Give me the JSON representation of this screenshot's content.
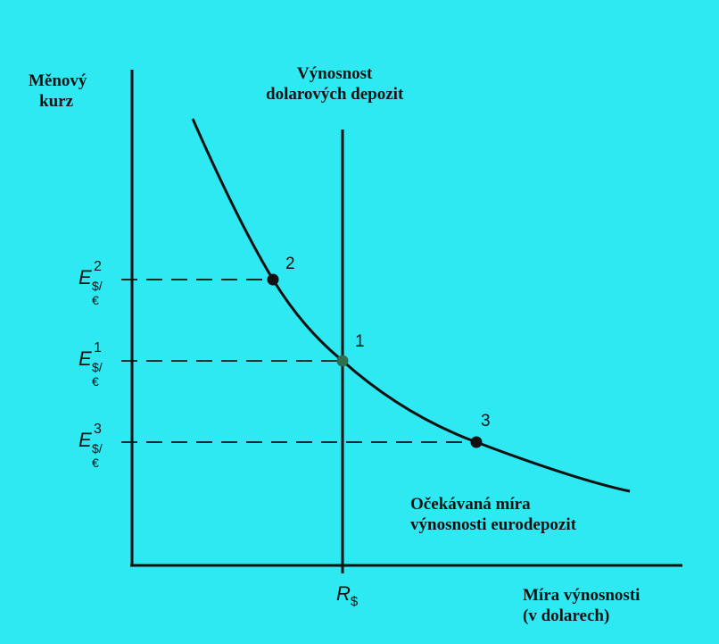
{
  "y_axis": {
    "label_line1": "Měnový",
    "label_line2": "kurz"
  },
  "x_axis": {
    "label_line1": "Míra výnosnosti",
    "label_line2": "(v dolarech)",
    "tick_label_main": "R",
    "tick_label_sub": "$"
  },
  "vertical_line": {
    "label_line1": "Výnosnost",
    "label_line2": "dolarových depozit"
  },
  "curve": {
    "label_line1": "Očekávaná míra",
    "label_line2": "výnosnosti eurodepozit"
  },
  "levels": [
    {
      "main": "E",
      "sup": "2",
      "sub": "$/€"
    },
    {
      "main": "E",
      "sup": "1",
      "sub": "$/€"
    },
    {
      "main": "E",
      "sup": "3",
      "sub": "$/€"
    }
  ],
  "points": [
    {
      "number": "2"
    },
    {
      "number": "1"
    },
    {
      "number": "3"
    }
  ],
  "colors": {
    "background": "#2ee8f2",
    "line": "#111111",
    "point_1": "#2f6f4f",
    "point": "#111111"
  }
}
